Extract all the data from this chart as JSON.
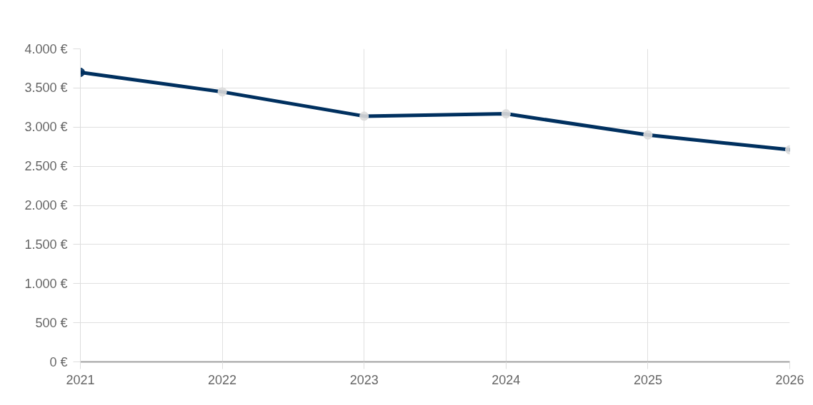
{
  "chart_data": {
    "type": "line",
    "categories": [
      "2021",
      "2022",
      "2023",
      "2024",
      "2025",
      "2026"
    ],
    "series": [
      {
        "color": "#00305f",
        "colors": [
          "#00305f",
          "#dcdcdc",
          "#dcdcdc",
          "#dcdcdc",
          "#dcdcdc",
          "#dcdcdc"
        ],
        "values": [
          3700,
          3450,
          3140,
          3170,
          2900,
          2710
        ]
      }
    ],
    "ylim": [
      0,
      4000
    ],
    "yticks": [
      {
        "value": 0,
        "label": "0 €"
      },
      {
        "value": 500,
        "label": "500 €"
      },
      {
        "value": 1000,
        "label": "1.000 €"
      },
      {
        "value": 1500,
        "label": "1.500 €"
      },
      {
        "value": 2000,
        "label": "2.000 €"
      },
      {
        "value": 2500,
        "label": "2.500 €"
      },
      {
        "value": 3000,
        "label": "3.000 €"
      },
      {
        "value": 3500,
        "label": "3.500 €"
      },
      {
        "value": 4000,
        "label": "4.000 €"
      }
    ],
    "grid": true,
    "marker": "circle",
    "line_style": "solid"
  }
}
